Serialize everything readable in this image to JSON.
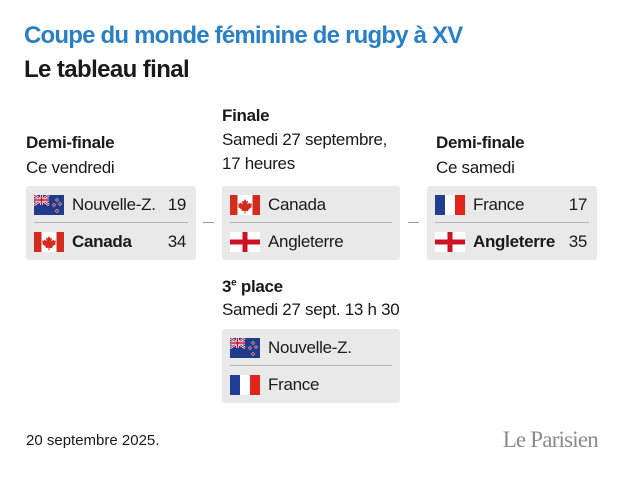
{
  "header": {
    "title": "Coupe du monde féminine de rugby à XV",
    "subtitle": "Le tableau final"
  },
  "semifinal_1": {
    "label": "Demi-finale",
    "date": "Ce vendredi",
    "teams": [
      {
        "name": "Nouvelle-Z.",
        "score": 19
      },
      {
        "name": "Canada",
        "score": 34
      }
    ]
  },
  "final": {
    "label": "Finale",
    "date_lines": [
      "Samedi 27 septembre,",
      "17 heures"
    ],
    "teams": [
      {
        "name": "Canada"
      },
      {
        "name": "Angleterre"
      }
    ]
  },
  "semifinal_2": {
    "label": "Demi-finale",
    "date": "Ce samedi",
    "teams": [
      {
        "name": "France",
        "score": 17
      },
      {
        "name": "Angleterre",
        "score": 35
      }
    ]
  },
  "third_place": {
    "label_number": "3",
    "label_superscript": "e",
    "label_text": "place",
    "date": "Samedi 27 sept. 13 h 30",
    "teams": [
      {
        "name": "Nouvelle-Z."
      },
      {
        "name": "France"
      }
    ]
  },
  "footer": {
    "date": "20 septembre 2025.",
    "logo": "Le Parisien"
  }
}
